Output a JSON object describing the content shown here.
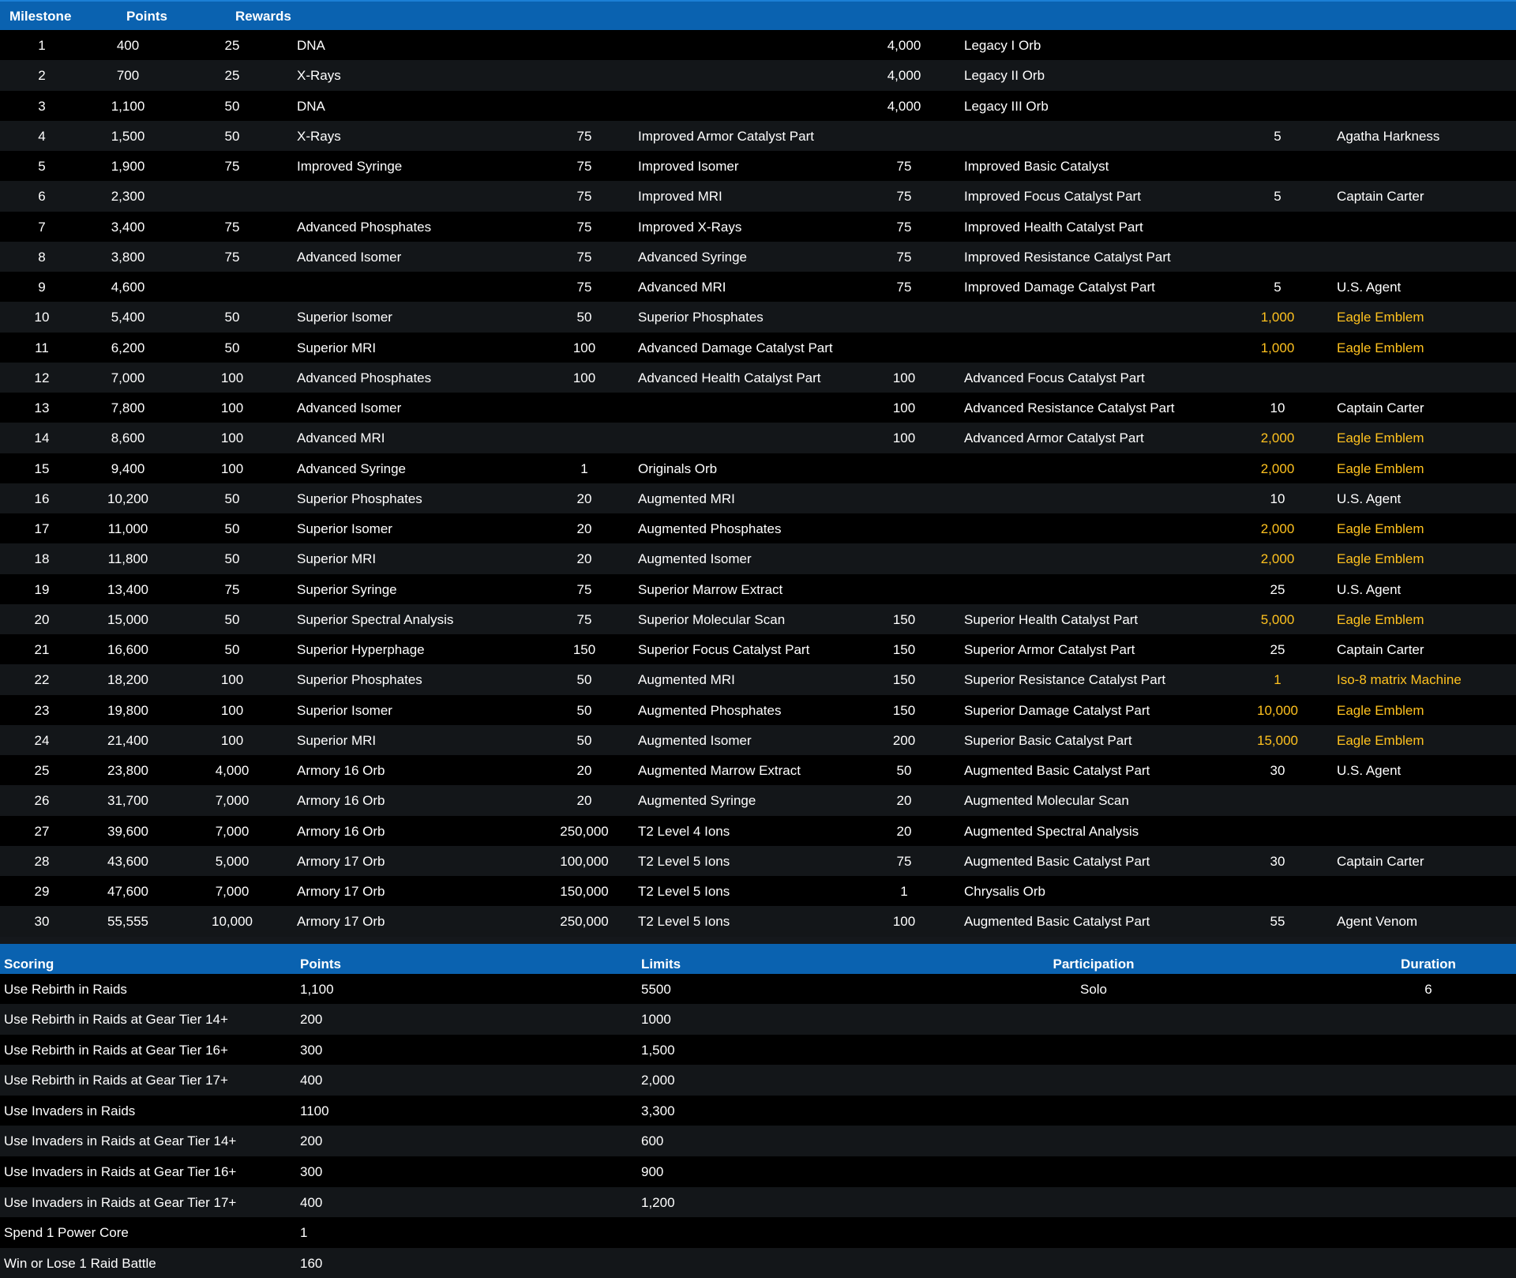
{
  "colors": {
    "header": "#0a62b0",
    "highlight": "#ffc21f",
    "alt_row": "#131619"
  },
  "milestones": {
    "headers": {
      "milestone": "Milestone",
      "points": "Points",
      "rewards": "Rewards"
    },
    "rows": [
      [
        "1",
        "400",
        "25",
        "DNA",
        "",
        "",
        "4,000",
        "Legacy I Orb",
        "",
        "",
        false
      ],
      [
        "2",
        "700",
        "25",
        "X-Rays",
        "",
        "",
        "4,000",
        "Legacy II Orb",
        "",
        "",
        false
      ],
      [
        "3",
        "1,100",
        "50",
        "DNA",
        "",
        "",
        "4,000",
        "Legacy III Orb",
        "",
        "",
        false
      ],
      [
        "4",
        "1,500",
        "50",
        "X-Rays",
        "75",
        "Improved Armor Catalyst Part",
        "",
        "",
        "5",
        "Agatha Harkness",
        false
      ],
      [
        "5",
        "1,900",
        "75",
        "Improved Syringe",
        "75",
        "Improved Isomer",
        "75",
        "Improved Basic Catalyst",
        "",
        "",
        false
      ],
      [
        "6",
        "2,300",
        "",
        "",
        "75",
        "Improved MRI",
        "75",
        "Improved Focus Catalyst Part",
        "5",
        "Captain Carter",
        false
      ],
      [
        "7",
        "3,400",
        "75",
        "Advanced Phosphates",
        "75",
        "Improved X-Rays",
        "75",
        "Improved Health Catalyst Part",
        "",
        "",
        false
      ],
      [
        "8",
        "3,800",
        "75",
        "Advanced Isomer",
        "75",
        "Advanced Syringe",
        "75",
        "Improved Resistance Catalyst Part",
        "",
        "",
        false
      ],
      [
        "9",
        "4,600",
        "",
        "",
        "75",
        "Advanced MRI",
        "75",
        "Improved Damage Catalyst Part",
        "5",
        "U.S. Agent",
        false
      ],
      [
        "10",
        "5,400",
        "50",
        "Superior Isomer",
        "50",
        "Superior Phosphates",
        "",
        "",
        "1,000",
        "Eagle Emblem",
        true
      ],
      [
        "11",
        "6,200",
        "50",
        "Superior MRI",
        "100",
        "Advanced Damage Catalyst Part",
        "",
        "",
        "1,000",
        "Eagle Emblem",
        true
      ],
      [
        "12",
        "7,000",
        "100",
        "Advanced Phosphates",
        "100",
        "Advanced Health Catalyst Part",
        "100",
        "Advanced Focus Catalyst Part",
        "",
        "",
        false
      ],
      [
        "13",
        "7,800",
        "100",
        "Advanced Isomer",
        "",
        "",
        "100",
        "Advanced Resistance Catalyst Part",
        "10",
        "Captain Carter",
        false
      ],
      [
        "14",
        "8,600",
        "100",
        "Advanced MRI",
        "",
        "",
        "100",
        "Advanced Armor Catalyst Part",
        "2,000",
        "Eagle Emblem",
        true
      ],
      [
        "15",
        "9,400",
        "100",
        "Advanced Syringe",
        "1",
        "Originals Orb",
        "",
        "",
        "2,000",
        "Eagle Emblem",
        true
      ],
      [
        "16",
        "10,200",
        "50",
        "Superior Phosphates",
        "20",
        "Augmented MRI",
        "",
        "",
        "10",
        "U.S. Agent",
        false
      ],
      [
        "17",
        "11,000",
        "50",
        "Superior Isomer",
        "20",
        "Augmented Phosphates",
        "",
        "",
        "2,000",
        "Eagle Emblem",
        true
      ],
      [
        "18",
        "11,800",
        "50",
        "Superior MRI",
        "20",
        "Augmented Isomer",
        "",
        "",
        "2,000",
        "Eagle Emblem",
        true
      ],
      [
        "19",
        "13,400",
        "75",
        "Superior Syringe",
        "75",
        "Superior Marrow Extract",
        "",
        "",
        "25",
        "U.S. Agent",
        false
      ],
      [
        "20",
        "15,000",
        "50",
        "Superior Spectral Analysis",
        "75",
        "Superior Molecular Scan",
        "150",
        "Superior Health Catalyst Part",
        "5,000",
        "Eagle Emblem",
        true
      ],
      [
        "21",
        "16,600",
        "50",
        "Superior Hyperphage",
        "150",
        "Superior Focus Catalyst Part",
        "150",
        "Superior Armor Catalyst Part",
        "25",
        "Captain Carter",
        false
      ],
      [
        "22",
        "18,200",
        "100",
        "Superior Phosphates",
        "50",
        "Augmented MRI",
        "150",
        "Superior Resistance Catalyst Part",
        "1",
        "Iso-8 matrix Machine",
        true
      ],
      [
        "23",
        "19,800",
        "100",
        "Superior Isomer",
        "50",
        "Augmented Phosphates",
        "150",
        "Superior Damage Catalyst Part",
        "10,000",
        "Eagle Emblem",
        true
      ],
      [
        "24",
        "21,400",
        "100",
        "Superior MRI",
        "50",
        "Augmented Isomer",
        "200",
        "Superior Basic Catalyst Part",
        "15,000",
        "Eagle Emblem",
        true
      ],
      [
        "25",
        "23,800",
        "4,000",
        "Armory 16 Orb",
        "20",
        "Augmented Marrow Extract",
        "50",
        "Augmented Basic Catalyst Part",
        "30",
        "U.S. Agent",
        false
      ],
      [
        "26",
        "31,700",
        "7,000",
        "Armory 16 Orb",
        "20",
        "Augmented Syringe",
        "20",
        "Augmented Molecular Scan",
        "",
        "",
        false
      ],
      [
        "27",
        "39,600",
        "7,000",
        "Armory 16 Orb",
        "250,000",
        "T2 Level 4 Ions",
        "20",
        "Augmented Spectral Analysis",
        "",
        "",
        false
      ],
      [
        "28",
        "43,600",
        "5,000",
        "Armory 17 Orb",
        "100,000",
        "T2 Level 5 Ions",
        "75",
        "Augmented Basic Catalyst Part",
        "30",
        "Captain Carter",
        false
      ],
      [
        "29",
        "47,600",
        "7,000",
        "Armory 17 Orb",
        "150,000",
        "T2 Level 5 Ions",
        "1",
        "Chrysalis Orb",
        "",
        "",
        false
      ],
      [
        "30",
        "55,555",
        "10,000",
        "Armory 17 Orb",
        "250,000",
        "T2 Level 5 Ions",
        "100",
        "Augmented Basic Catalyst Part",
        "55",
        "Agent Venom",
        false
      ]
    ]
  },
  "scoring": {
    "headers": {
      "scoring": "Scoring",
      "points": "Points",
      "limits": "Limits",
      "participation": "Participation",
      "duration": "Duration"
    },
    "rows": [
      [
        "Use Rebirth in Raids",
        "1,100",
        "5500",
        "Solo",
        "6"
      ],
      [
        "Use Rebirth in Raids at Gear Tier 14+",
        "200",
        "1000",
        "",
        ""
      ],
      [
        "Use Rebirth in Raids at Gear Tier 16+",
        "300",
        "1,500",
        "",
        ""
      ],
      [
        "Use Rebirth in Raids at Gear Tier 17+",
        "400",
        "2,000",
        "",
        ""
      ],
      [
        "Use Invaders in Raids",
        "1100",
        "3,300",
        "",
        ""
      ],
      [
        "Use Invaders in Raids at Gear Tier 14+",
        "200",
        "600",
        "",
        ""
      ],
      [
        "Use Invaders in Raids at Gear Tier 16+",
        "300",
        "900",
        "",
        ""
      ],
      [
        "Use Invaders in Raids at Gear Tier 17+",
        "400",
        "1,200",
        "",
        ""
      ],
      [
        "Spend 1 Power Core",
        "1",
        "",
        "",
        ""
      ],
      [
        "Win or Lose 1 Raid Battle",
        "160",
        "",
        "",
        ""
      ]
    ]
  }
}
